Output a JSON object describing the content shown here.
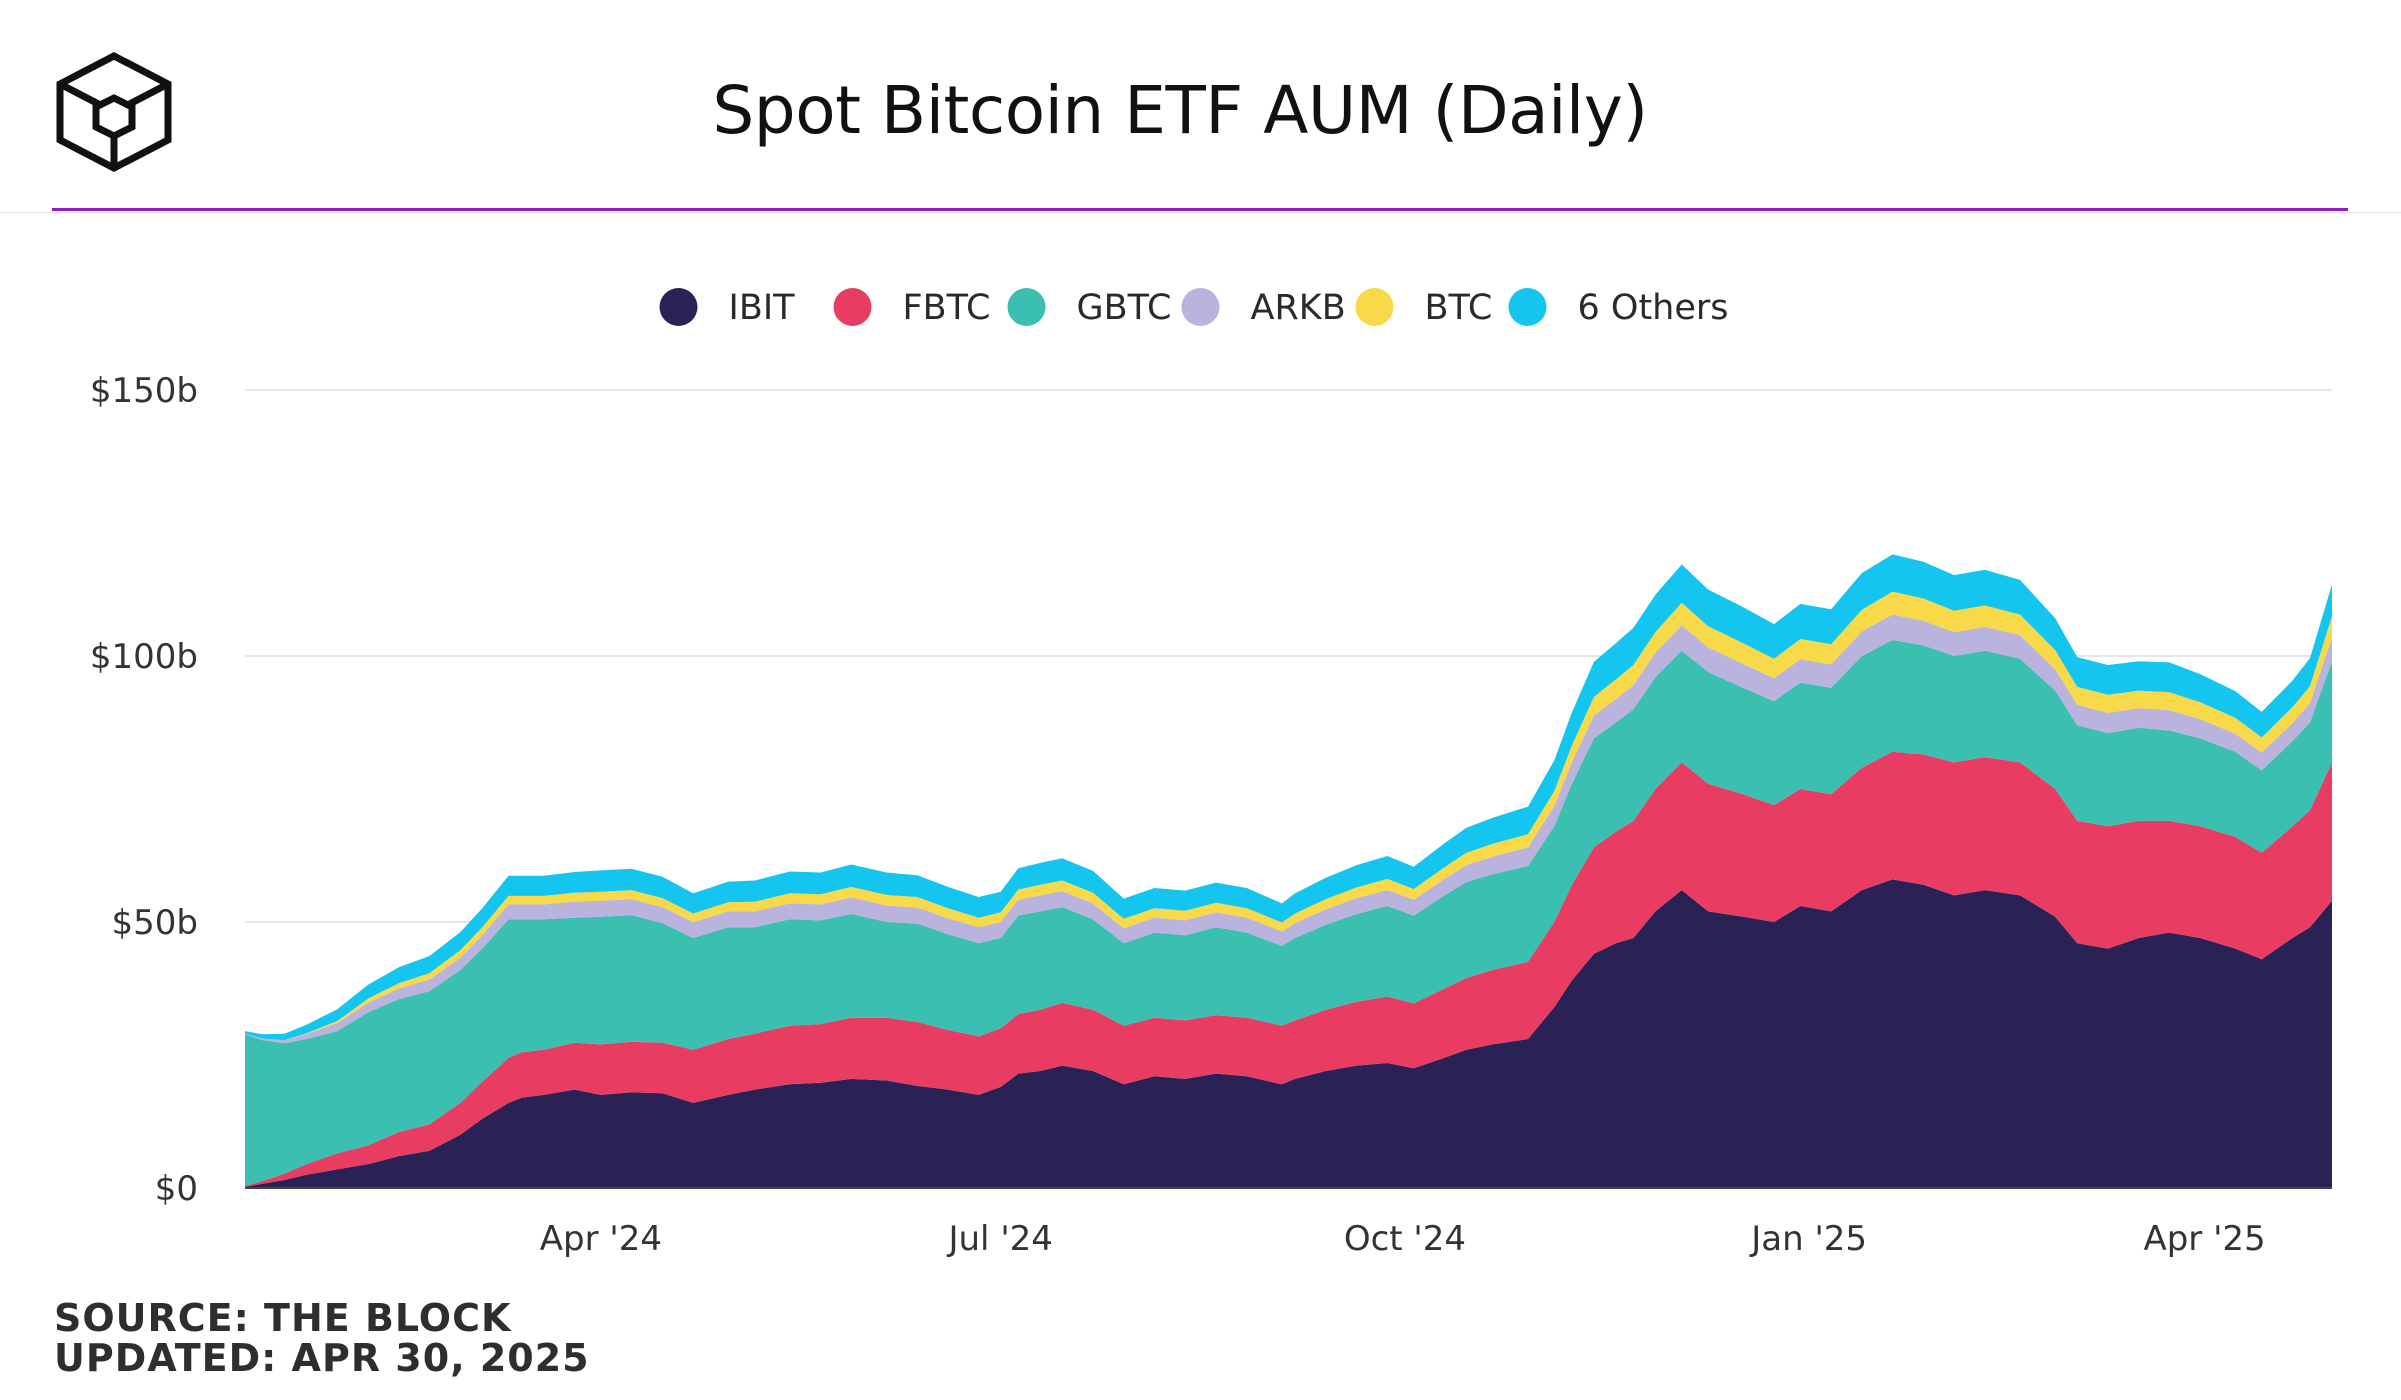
{
  "title": "Spot Bitcoin ETF AUM (Daily)",
  "source_line": "SOURCE: THE BLOCK",
  "updated_line": "UPDATED: APR 30, 2025",
  "colors": {
    "accent": "#8a1fbf",
    "IBIT": "#2a2255",
    "FBTC": "#e83c62",
    "GBTC": "#3bbfb0",
    "ARKB": "#b9b3de",
    "BTC": "#f7d94a",
    "6 Others": "#14c6ef"
  },
  "chart_data": {
    "type": "area",
    "stacked": true,
    "title": "Spot Bitcoin ETF AUM (Daily)",
    "xlabel": "",
    "ylabel": "",
    "x": [
      "2024-01-11",
      "2024-01-15",
      "2024-01-20",
      "2024-01-25",
      "2024-02-01",
      "2024-02-08",
      "2024-02-15",
      "2024-02-22",
      "2024-02-29",
      "2024-03-05",
      "2024-03-11",
      "2024-03-14",
      "2024-03-19",
      "2024-03-26",
      "2024-04-01",
      "2024-04-08",
      "2024-04-15",
      "2024-04-22",
      "2024-04-30",
      "2024-05-06",
      "2024-05-14",
      "2024-05-21",
      "2024-05-28",
      "2024-06-05",
      "2024-06-12",
      "2024-06-19",
      "2024-06-26",
      "2024-07-01",
      "2024-07-05",
      "2024-07-10",
      "2024-07-15",
      "2024-07-22",
      "2024-07-29",
      "2024-08-05",
      "2024-08-12",
      "2024-08-19",
      "2024-08-26",
      "2024-09-03",
      "2024-09-06",
      "2024-09-13",
      "2024-09-20",
      "2024-09-27",
      "2024-10-03",
      "2024-10-10",
      "2024-10-15",
      "2024-10-21",
      "2024-10-29",
      "2024-11-04",
      "2024-11-08",
      "2024-11-13",
      "2024-11-18",
      "2024-11-22",
      "2024-11-27",
      "2024-12-03",
      "2024-12-09",
      "2024-12-17",
      "2024-12-24",
      "2024-12-30",
      "2025-01-06",
      "2025-01-13",
      "2025-01-20",
      "2025-01-27",
      "2025-02-03",
      "2025-02-10",
      "2025-02-18",
      "2025-02-26",
      "2025-03-03",
      "2025-03-10",
      "2025-03-17",
      "2025-03-24",
      "2025-03-31",
      "2025-04-08",
      "2025-04-14",
      "2025-04-21",
      "2025-04-25",
      "2025-04-30"
    ],
    "x_ticks": [
      "Apr '24",
      "Jul '24",
      "Oct '24",
      "Jan '25",
      "Apr '25"
    ],
    "y_ticks": [
      "$0",
      "$50b",
      "$100b",
      "$150b"
    ],
    "ylim": [
      0,
      150
    ],
    "y_unit": "billion USD",
    "grid": true,
    "legend_position": "top-center",
    "series": [
      {
        "name": "IBIT",
        "values": [
          0.2,
          0.8,
          1.5,
          2.5,
          3.5,
          4.5,
          6,
          7,
          10,
          13,
          16,
          17,
          17.5,
          18.5,
          17.5,
          18,
          17.8,
          16,
          17.5,
          18.5,
          19.5,
          19.8,
          20.5,
          20.2,
          19.2,
          18.5,
          17.5,
          19,
          21.5,
          22,
          23,
          22,
          19.5,
          21,
          20.5,
          21.5,
          21,
          19.5,
          20.5,
          22,
          23,
          23.5,
          22.5,
          24.5,
          26,
          27,
          28,
          34,
          39,
          44,
          46,
          47,
          52,
          56,
          52,
          51,
          50,
          53,
          52,
          56,
          58,
          57,
          55,
          56,
          55,
          51,
          46,
          45,
          47,
          48,
          47,
          45,
          43,
          47,
          49,
          54
        ]
      },
      {
        "name": "FBTC",
        "values": [
          0.2,
          0.5,
          1.2,
          2,
          3,
          3.5,
          4.5,
          5,
          6,
          7,
          8.5,
          8.5,
          8.5,
          8.8,
          9.5,
          9.5,
          9.5,
          10,
          10.5,
          10.5,
          11,
          11,
          11.5,
          11.8,
          12,
          11.2,
          11,
          11,
          11.2,
          11.5,
          11.8,
          11.5,
          11,
          11,
          11,
          11,
          11,
          11,
          11,
          11.5,
          12,
          12.5,
          12.2,
          13,
          13.5,
          14,
          14.5,
          16,
          18,
          20,
          21,
          22,
          23,
          24,
          24,
          23,
          22,
          22,
          22,
          23,
          24,
          24.5,
          25,
          25,
          25,
          24,
          23,
          23,
          22,
          21,
          21,
          21,
          20,
          21,
          22,
          26
        ]
      },
      {
        "name": "GBTC",
        "values": [
          28.5,
          26.5,
          24.5,
          23.5,
          23,
          25,
          25,
          25,
          25,
          25,
          26,
          25,
          24.5,
          23.5,
          24,
          23.8,
          22.5,
          21,
          21,
          20,
          20,
          19.5,
          19.5,
          18,
          18.5,
          18,
          17.5,
          17,
          18.5,
          18.5,
          18,
          17,
          15.5,
          16,
          16,
          16.5,
          16,
          15,
          15.5,
          16,
          16.5,
          17,
          16.5,
          17.5,
          18,
          18,
          18,
          18,
          19,
          20.5,
          20.5,
          21,
          21,
          21,
          21,
          20,
          19.5,
          20,
          20,
          21,
          21,
          20.5,
          20,
          20,
          19.5,
          18.5,
          18,
          17.5,
          17.5,
          17,
          16.5,
          16,
          15.5,
          16,
          16.5,
          19
        ]
      },
      {
        "name": "ARKB",
        "values": [
          0.1,
          0.3,
          0.6,
          1,
          1.5,
          1.8,
          2,
          2.2,
          2.3,
          2.5,
          2.8,
          2.8,
          2.8,
          3,
          3,
          3,
          3,
          3,
          3,
          3,
          3,
          3,
          3.1,
          3.1,
          3,
          3,
          3,
          3,
          3,
          3,
          3,
          3,
          2.8,
          2.8,
          2.8,
          2.8,
          2.8,
          2.7,
          2.8,
          2.9,
          3,
          3,
          3,
          3.1,
          3.2,
          3.3,
          3.5,
          3.8,
          4,
          4.3,
          4.4,
          4.5,
          4.6,
          4.8,
          4.6,
          4.5,
          4.3,
          4.4,
          4.4,
          4.6,
          4.8,
          4.6,
          4.5,
          4.5,
          4.4,
          4,
          3.8,
          3.8,
          3.7,
          3.8,
          3.6,
          3.4,
          3.3,
          3.4,
          3.6,
          4.5
        ]
      },
      {
        "name": "BTC",
        "values": [
          0,
          0,
          0,
          0.1,
          0.4,
          0.8,
          1,
          1.2,
          1.4,
          1.5,
          1.6,
          1.6,
          1.6,
          1.7,
          1.7,
          1.7,
          1.7,
          1.6,
          1.7,
          1.8,
          1.9,
          1.9,
          2,
          2,
          2,
          1.9,
          1.8,
          1.8,
          1.9,
          2,
          2,
          2,
          1.8,
          1.8,
          1.8,
          1.8,
          1.8,
          1.7,
          1.8,
          1.9,
          2,
          2.1,
          2,
          2.2,
          2.3,
          2.4,
          2.5,
          2.8,
          3.2,
          3.5,
          3.7,
          3.8,
          3.9,
          4.2,
          4,
          3.9,
          3.7,
          3.8,
          3.8,
          4.1,
          4.3,
          4.2,
          4,
          4,
          3.9,
          3.6,
          3.4,
          3.4,
          3.3,
          3.4,
          3.2,
          3,
          2.9,
          3,
          3.2,
          4
        ]
      },
      {
        "name": "6 Others",
        "values": [
          0.5,
          0.8,
          1.2,
          1.6,
          2.2,
          2.6,
          3,
          3.2,
          3.4,
          3.6,
          3.8,
          3.8,
          3.8,
          3.9,
          4,
          4,
          4,
          3.8,
          3.9,
          4,
          4.1,
          4.1,
          4.2,
          4.2,
          4.1,
          4,
          3.9,
          3.9,
          4,
          4.1,
          4.2,
          4.1,
          3.8,
          3.8,
          3.8,
          3.8,
          3.8,
          3.6,
          3.8,
          4,
          4.2,
          4.3,
          4.2,
          4.5,
          4.7,
          4.9,
          5.2,
          5.8,
          6.2,
          6.6,
          6.8,
          7,
          7,
          7.2,
          6.9,
          6.8,
          6.5,
          6.6,
          6.6,
          6.9,
          7,
          6.9,
          6.7,
          6.7,
          6.5,
          6,
          5.6,
          5.6,
          5.5,
          5.6,
          5.3,
          5,
          4.8,
          5,
          5.3,
          6
        ]
      }
    ]
  }
}
